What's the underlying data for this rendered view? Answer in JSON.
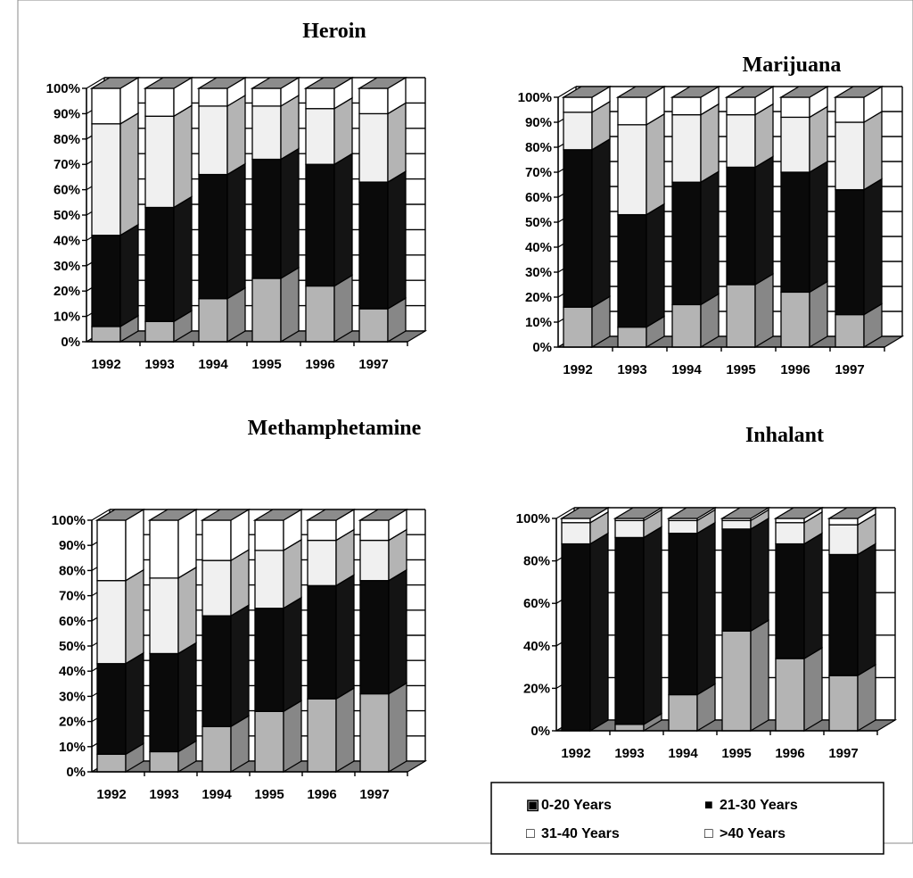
{
  "colors": {
    "0-20": "#b4b4b4",
    "21-30": "#0a0a0a",
    "31-40": "#f0f0f0",
    "gt40": "#ffffff",
    "top_face": "#8c8c8c",
    "floor": "#7a7a7a"
  },
  "legend": {
    "items": [
      {
        "label": "0-20 Years",
        "marker": "▣",
        "color_key": "0-20"
      },
      {
        "label": "21-30 Years",
        "marker": "■",
        "color_key": "21-30"
      },
      {
        "label": "31-40 Years",
        "marker": "□",
        "color_key": "31-40"
      },
      {
        "label": ">40 Years",
        "marker": "□",
        "color_key": "gt40"
      }
    ]
  },
  "chart_data": [
    {
      "type": "bar",
      "stacked": true,
      "percent": true,
      "three_d": true,
      "title": "Heroin",
      "categories": [
        "1992",
        "1993",
        "1994",
        "1995",
        "1996",
        "1997"
      ],
      "y_ticks": [
        "0%",
        "10%",
        "20%",
        "30%",
        "40%",
        "50%",
        "60%",
        "70%",
        "80%",
        "90%",
        "100%"
      ],
      "ylim": [
        0,
        100
      ],
      "grid": true,
      "series": [
        {
          "name": "0-20 Years",
          "values": [
            6,
            8,
            17,
            25,
            22,
            13
          ]
        },
        {
          "name": "21-30 Years",
          "values": [
            36,
            45,
            49,
            47,
            48,
            50
          ]
        },
        {
          "name": "31-40 Years",
          "values": [
            44,
            36,
            27,
            21,
            22,
            27
          ]
        },
        {
          "name": ">40 Years",
          "values": [
            14,
            11,
            7,
            7,
            8,
            10
          ]
        }
      ]
    },
    {
      "type": "bar",
      "stacked": true,
      "percent": true,
      "three_d": true,
      "title": "Marijuana",
      "categories": [
        "1992",
        "1993",
        "1994",
        "1995",
        "1996",
        "1997"
      ],
      "y_ticks": [
        "0%",
        "10%",
        "20%",
        "30%",
        "40%",
        "50%",
        "60%",
        "70%",
        "80%",
        "90%",
        "100%"
      ],
      "ylim": [
        0,
        100
      ],
      "grid": true,
      "series": [
        {
          "name": "0-20 Years",
          "values": [
            16,
            8,
            17,
            25,
            22,
            13
          ]
        },
        {
          "name": "21-30 Years",
          "values": [
            63,
            45,
            49,
            47,
            48,
            50
          ]
        },
        {
          "name": "31-40 Years",
          "values": [
            15,
            36,
            27,
            21,
            22,
            27
          ]
        },
        {
          "name": ">40 Years",
          "values": [
            6,
            11,
            7,
            7,
            8,
            10
          ]
        }
      ]
    },
    {
      "type": "bar",
      "stacked": true,
      "percent": true,
      "three_d": true,
      "title": "Methamphetamine",
      "categories": [
        "1992",
        "1993",
        "1994",
        "1995",
        "1996",
        "1997"
      ],
      "y_ticks": [
        "0%",
        "10%",
        "20%",
        "30%",
        "40%",
        "50%",
        "60%",
        "70%",
        "80%",
        "90%",
        "100%"
      ],
      "ylim": [
        0,
        100
      ],
      "grid": true,
      "series": [
        {
          "name": "0-20 Years",
          "values": [
            7,
            8,
            18,
            24,
            29,
            31
          ]
        },
        {
          "name": "21-30 Years",
          "values": [
            36,
            39,
            44,
            41,
            45,
            45
          ]
        },
        {
          "name": "31-40 Years",
          "values": [
            33,
            30,
            22,
            23,
            18,
            16
          ]
        },
        {
          "name": ">40 Years",
          "values": [
            24,
            23,
            16,
            12,
            8,
            8
          ]
        }
      ]
    },
    {
      "type": "bar",
      "stacked": true,
      "percent": true,
      "three_d": true,
      "title": "Inhalant",
      "categories": [
        "1992",
        "1993",
        "1994",
        "1995",
        "1996",
        "1997"
      ],
      "y_ticks": [
        "0%",
        "20%",
        "40%",
        "60%",
        "80%",
        "100%"
      ],
      "ylim": [
        0,
        100
      ],
      "grid": true,
      "series": [
        {
          "name": "0-20 Years",
          "values": [
            0,
            3,
            17,
            47,
            34,
            26
          ]
        },
        {
          "name": "21-30 Years",
          "values": [
            88,
            88,
            76,
            48,
            54,
            57
          ]
        },
        {
          "name": "31-40 Years",
          "values": [
            10,
            8,
            6,
            4,
            10,
            14
          ]
        },
        {
          "name": ">40 Years",
          "values": [
            2,
            1,
            1,
            1,
            2,
            3
          ]
        }
      ]
    }
  ]
}
